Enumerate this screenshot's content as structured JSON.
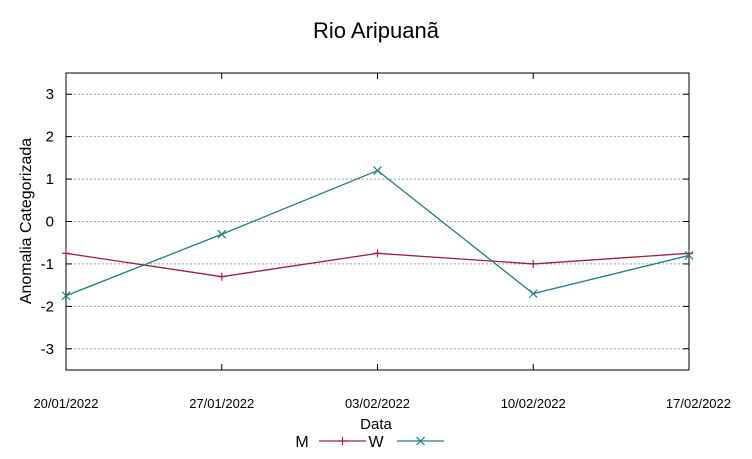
{
  "chart_data": {
    "type": "line",
    "title": "Rio Aripuanã",
    "xlabel": "Data",
    "ylabel": "Anomalia Categorizada",
    "categories": [
      "20/01/2022",
      "27/01/2022",
      "03/02/2022",
      "10/02/2022",
      "17/02/2022"
    ],
    "ylim": [
      -3.5,
      3.5
    ],
    "yticks": [
      3,
      2,
      1,
      0,
      -1,
      -2,
      -3
    ],
    "ytick_labels": [
      "3",
      "2",
      "1",
      "0",
      "-1",
      "-2",
      "-3"
    ],
    "grid": true,
    "legend_position": "bottom-center",
    "series": [
      {
        "name": "M",
        "color": "#a0203a",
        "marker": "plus",
        "values": [
          -0.75,
          -1.3,
          -0.75,
          -1.0,
          -0.75
        ]
      },
      {
        "name": "W",
        "color": "#1a8080",
        "marker": "x",
        "values": [
          -1.75,
          -0.3,
          1.2,
          -1.7,
          -0.8
        ]
      }
    ]
  }
}
